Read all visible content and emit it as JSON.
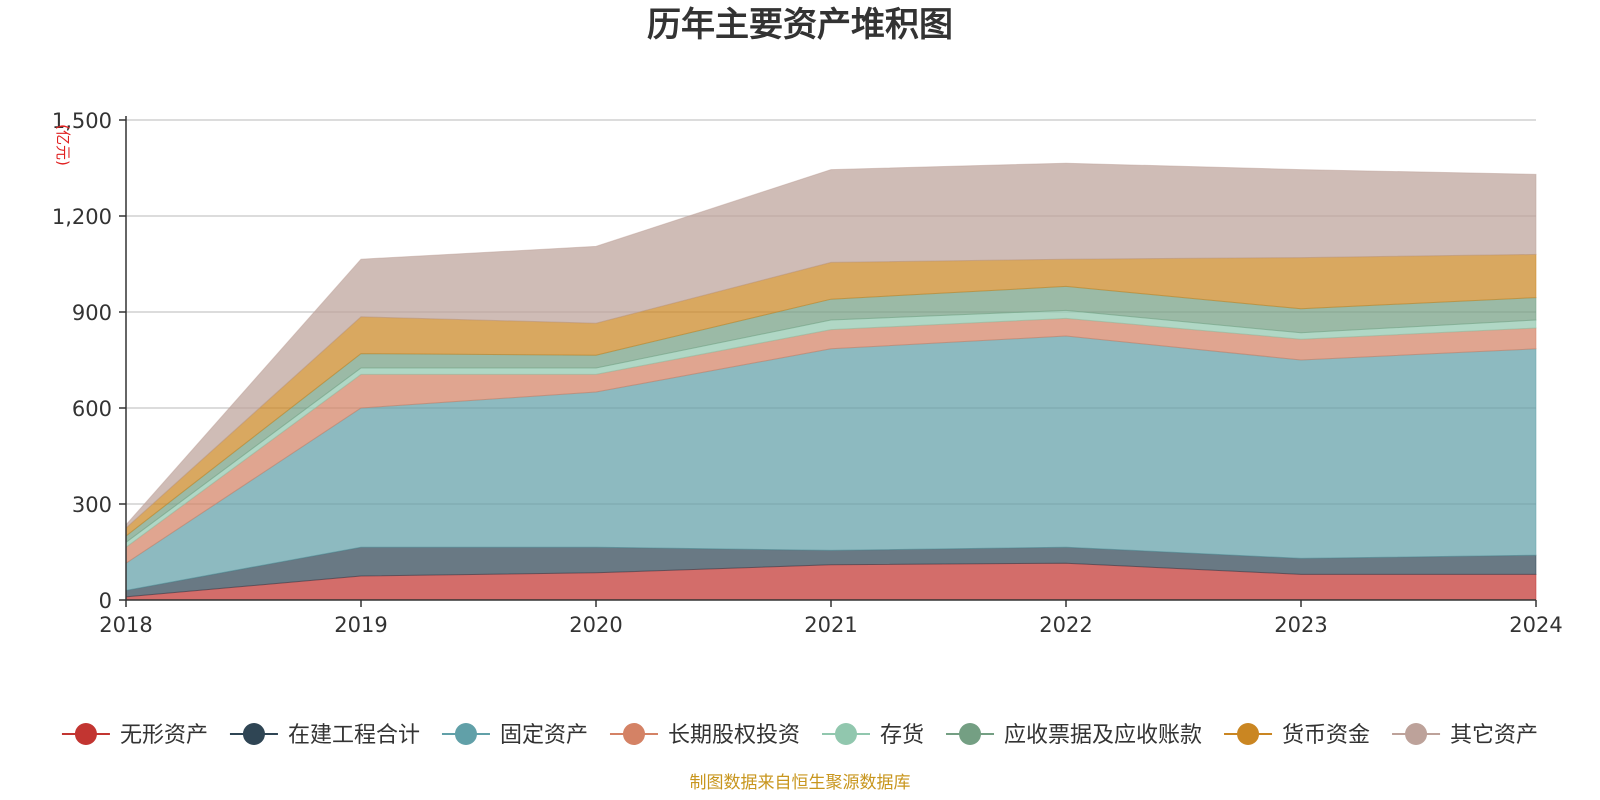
{
  "chart_data": {
    "type": "area",
    "stacked": true,
    "title": "历年主要资产堆积图",
    "unit": "(亿元)",
    "x": [
      "2018",
      "2019",
      "2020",
      "2021",
      "2022",
      "2023",
      "2024"
    ],
    "ylim": [
      0,
      1500
    ],
    "yticks": [
      0,
      300,
      600,
      900,
      1200,
      1500
    ],
    "ytick_labels": [
      "0",
      "300",
      "600",
      "900",
      "1,200",
      "1,500"
    ],
    "grid": true,
    "legend_position": "bottom",
    "series": [
      {
        "name": "无形资产",
        "color": "#c23531",
        "values": [
          10,
          75,
          85,
          110,
          115,
          80,
          80
        ]
      },
      {
        "name": "在建工程合计",
        "color": "#2f4554",
        "values": [
          20,
          90,
          80,
          45,
          50,
          50,
          60
        ]
      },
      {
        "name": "固定资产",
        "color": "#61a0a8",
        "values": [
          85,
          435,
          485,
          630,
          660,
          620,
          645
        ]
      },
      {
        "name": "长期股权投资",
        "color": "#d48265",
        "values": [
          50,
          105,
          55,
          60,
          55,
          65,
          65
        ]
      },
      {
        "name": "存货",
        "color": "#91c7ae",
        "values": [
          15,
          20,
          20,
          30,
          25,
          20,
          25
        ]
      },
      {
        "name": "应收票据及应收账款",
        "color": "#749f83",
        "values": [
          20,
          45,
          40,
          65,
          75,
          75,
          70
        ]
      },
      {
        "name": "货币资金",
        "color": "#ca8622",
        "values": [
          25,
          115,
          100,
          115,
          85,
          160,
          135
        ]
      },
      {
        "name": "其它资产",
        "color": "#bda29a",
        "values": [
          10,
          180,
          240,
          290,
          300,
          275,
          250
        ]
      }
    ],
    "source": "制图数据来自恒生聚源数据库"
  }
}
